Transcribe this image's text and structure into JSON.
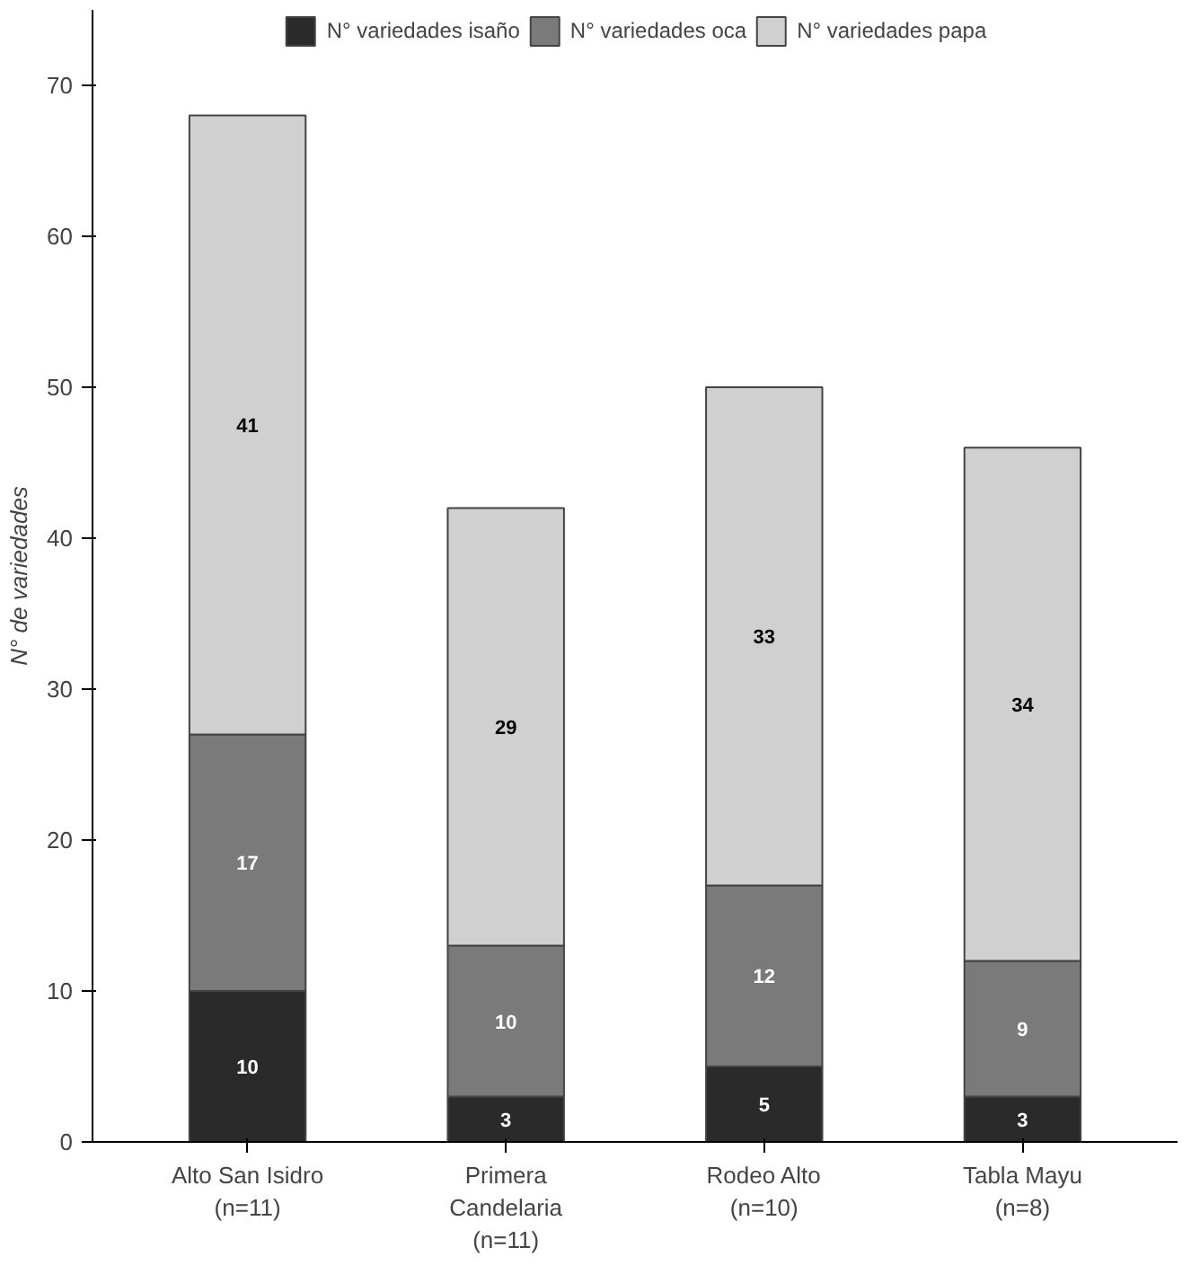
{
  "chart_data": {
    "type": "bar",
    "stacked": true,
    "ylabel": "N° de variedades",
    "categories": [
      "Alto San Isidro\n(n=11)",
      "Primera\nCandelaria\n(n=11)",
      "Rodeo Alto\n(n=10)",
      "Tabla Mayu\n(n=8)"
    ],
    "series": [
      {
        "name": "N° variedades isaño",
        "color": "#2a2a2a",
        "values": [
          10,
          3,
          5,
          3
        ]
      },
      {
        "name": "N° variedades oca",
        "color": "#7a7a7a",
        "values": [
          17,
          10,
          12,
          9
        ]
      },
      {
        "name": "N° variedades papa",
        "color": "#d0d0d0",
        "values": [
          41,
          29,
          33,
          34
        ]
      }
    ],
    "ylim": [
      0,
      75
    ],
    "yticks": [
      0,
      10,
      20,
      30,
      40,
      50,
      60,
      70
    ],
    "data_labels": true,
    "legend": "top",
    "grid": false
  }
}
